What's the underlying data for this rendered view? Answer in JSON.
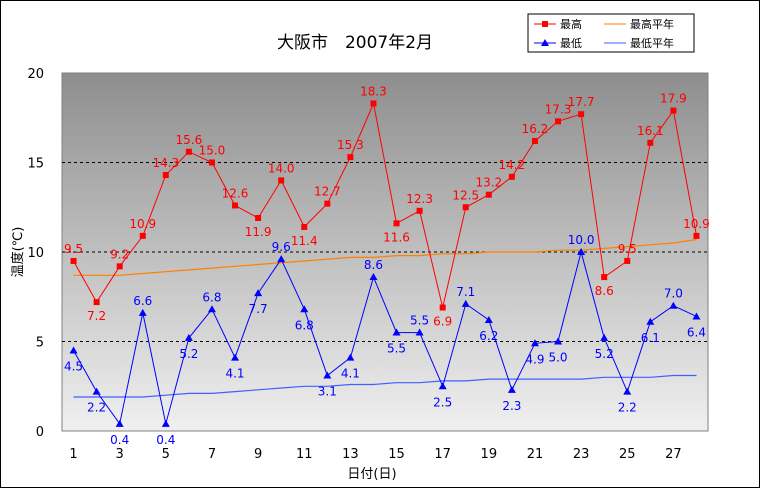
{
  "chart_data": {
    "type": "line",
    "title": "大阪市　2007年2月",
    "xlabel": "日付(日)",
    "ylabel": "温度(℃)",
    "ylim": [
      0,
      20
    ],
    "yticks": [
      "0",
      "5",
      "10",
      "15",
      "20"
    ],
    "xticks": [
      "1",
      "3",
      "5",
      "7",
      "9",
      "11",
      "13",
      "15",
      "17",
      "19",
      "21",
      "23",
      "25",
      "27"
    ],
    "x": [
      1,
      2,
      3,
      4,
      5,
      6,
      7,
      8,
      9,
      10,
      11,
      12,
      13,
      14,
      15,
      16,
      17,
      18,
      19,
      20,
      21,
      22,
      23,
      24,
      25,
      26,
      27,
      28
    ],
    "grid": "horizontal dashed",
    "legend_position": "top-right",
    "series": [
      {
        "name": "最高",
        "color": "#ff0000",
        "marker": "square",
        "values": [
          9.5,
          7.2,
          9.2,
          10.9,
          14.3,
          15.6,
          15.0,
          12.6,
          11.9,
          14.0,
          11.4,
          12.7,
          15.3,
          18.3,
          11.6,
          12.3,
          6.9,
          12.5,
          13.2,
          14.2,
          16.2,
          17.3,
          17.7,
          8.6,
          9.5,
          16.1,
          17.9,
          10.9
        ],
        "labels": [
          "9.5",
          "7.2",
          "9.2",
          "10.9",
          "14.3",
          "15.6",
          "15.0",
          "12.6",
          "11.9",
          "14.0",
          "11.4",
          "12.7",
          "15.3",
          "18.3",
          "11.6",
          "12.3",
          "6.9",
          "12.5",
          "13.2",
          "14.2",
          "16.2",
          "17.3",
          "17.7",
          "8.6",
          "9.5",
          "16.1",
          "17.9",
          "10.9"
        ]
      },
      {
        "name": "最低",
        "color": "#0000ff",
        "marker": "triangle",
        "values": [
          4.5,
          2.2,
          0.4,
          6.6,
          0.4,
          5.2,
          6.8,
          4.1,
          7.7,
          9.6,
          6.8,
          3.1,
          4.1,
          8.6,
          5.5,
          5.5,
          2.5,
          7.1,
          6.2,
          2.3,
          4.9,
          5.0,
          10.0,
          5.2,
          2.2,
          6.1,
          7.0,
          6.4
        ],
        "labels": [
          "4.5",
          "2.2",
          "0.4",
          "6.6",
          "0.4",
          "5.2",
          "6.8",
          "4.1",
          "7.7",
          "9.6",
          "6.8",
          "3.1",
          "4.1",
          "8.6",
          "5.5",
          "5.5",
          "2.5",
          "7.1",
          "6.2",
          "2.3",
          "4.9",
          "5.0",
          "10.0",
          "5.2",
          "2.2",
          "6.1",
          "7.0",
          "6.4"
        ]
      },
      {
        "name": "最高平年",
        "color": "#ff8000",
        "marker": "none",
        "values": [
          8.7,
          8.7,
          8.7,
          8.8,
          8.9,
          9.0,
          9.1,
          9.2,
          9.3,
          9.4,
          9.5,
          9.6,
          9.7,
          9.7,
          9.8,
          9.8,
          9.9,
          9.9,
          10.0,
          10.0,
          10.0,
          10.1,
          10.1,
          10.2,
          10.3,
          10.4,
          10.5,
          10.7
        ]
      },
      {
        "name": "最低平年",
        "color": "#4060ff",
        "marker": "none",
        "values": [
          1.9,
          1.9,
          1.9,
          1.9,
          2.0,
          2.1,
          2.1,
          2.2,
          2.3,
          2.4,
          2.5,
          2.5,
          2.6,
          2.6,
          2.7,
          2.7,
          2.8,
          2.8,
          2.9,
          2.9,
          2.9,
          2.9,
          2.9,
          3.0,
          3.0,
          3.0,
          3.1,
          3.1
        ]
      }
    ]
  }
}
